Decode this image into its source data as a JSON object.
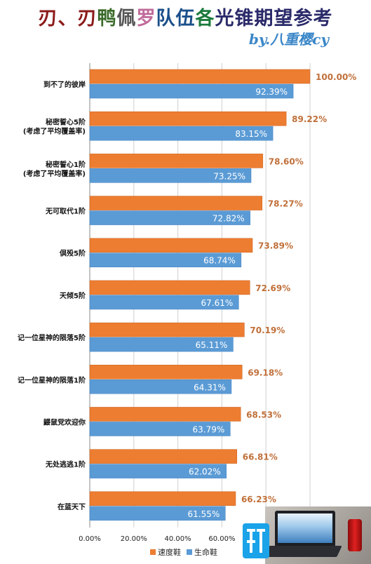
{
  "title_parts": [
    {
      "text": "刃、刃",
      "color": "#8b1a1a"
    },
    {
      "text": "鸭",
      "color": "#3a6a2a"
    },
    {
      "text": "佩",
      "color": "#555555"
    },
    {
      "text": "罗",
      "color": "#c06a9a"
    },
    {
      "text": "队伍",
      "color": "#1a4f8a"
    },
    {
      "text": "各",
      "color": "#1a7a3a"
    },
    {
      "text": "光锥期望参考",
      "color": "#2a2a6a"
    }
  ],
  "byline": "by.八重樱cy",
  "colors": {
    "orange": "#ed7d31",
    "blue": "#5b9bd5"
  },
  "chart_data": {
    "type": "bar",
    "orientation": "horizontal",
    "categories": [
      "到不了的彼岸",
      "秘密誓心5阶\n(考虑了平均覆盖率)",
      "秘密誓心1阶\n(考虑了平均覆盖率)",
      "无可取代1阶",
      "倶殁5阶",
      "天倾5阶",
      "记一位星神的陨落5阶",
      "记一位星神的陨落1阶",
      "鼹鼠党欢迎你",
      "无处逃逃1阶",
      "在蓝天下"
    ],
    "series": [
      {
        "name": "速度鞋",
        "values": [
          100.0,
          89.22,
          78.6,
          78.27,
          73.89,
          72.69,
          70.19,
          69.18,
          68.53,
          66.81,
          66.23
        ],
        "labels": [
          "100.00%",
          "89.22%",
          "78.60%",
          "78.27%",
          "73.89%",
          "72.69%",
          "70.19%",
          "69.18%",
          "68.53%",
          "66.81%",
          "66.23%"
        ]
      },
      {
        "name": "生命鞋",
        "values": [
          92.39,
          83.15,
          73.25,
          72.82,
          68.74,
          67.61,
          65.11,
          64.31,
          63.79,
          62.02,
          61.55
        ],
        "labels": [
          "92.39%",
          "83.15%",
          "73.25%",
          "72.82%",
          "68.74%",
          "67.61%",
          "65.11%",
          "64.31%",
          "63.79%",
          "62.02%",
          "61.55%"
        ]
      }
    ],
    "xlim": [
      0,
      120
    ],
    "x_ticks": [
      "0.00%",
      "20.00%",
      "40.00%",
      "60.00%"
    ],
    "x_tick_values": [
      0,
      20,
      40,
      60
    ],
    "legend_position": "bottom",
    "grid": true
  }
}
